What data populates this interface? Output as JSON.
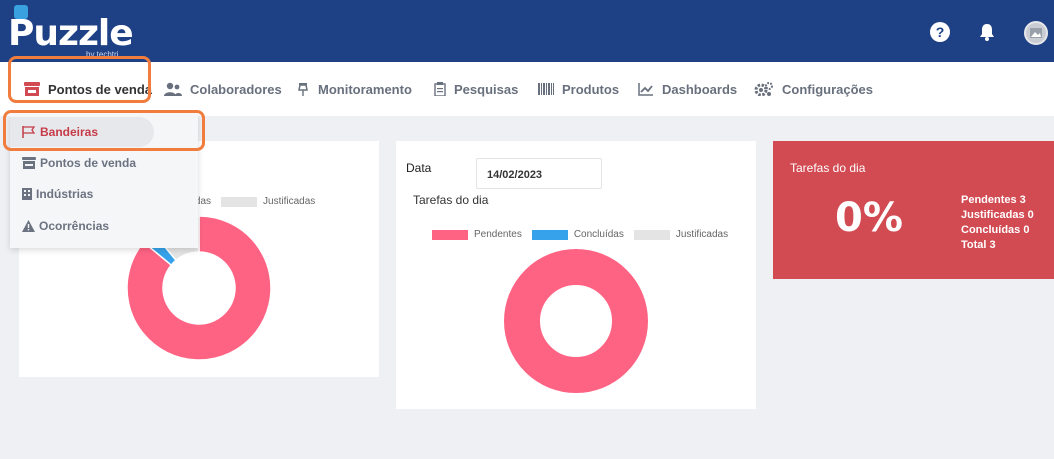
{
  "brand": {
    "name": "Puzzle",
    "sub": "by techtri"
  },
  "topbar": {
    "help_icon": "question-circle-icon",
    "bell_icon": "bell-icon",
    "avatar_icon": "image-avatar-icon",
    "help_glyph": "?"
  },
  "nav": [
    {
      "label": "Pontos de venda",
      "icon": "store-icon",
      "active": true
    },
    {
      "label": "Colaboradores",
      "icon": "users-icon",
      "active": false
    },
    {
      "label": "Monitoramento",
      "icon": "thumbtack-icon",
      "active": false
    },
    {
      "label": "Pesquisas",
      "icon": "clipboard-icon",
      "active": false
    },
    {
      "label": "Produtos",
      "icon": "barcode-icon",
      "active": false
    },
    {
      "label": "Dashboards",
      "icon": "chart-line-icon",
      "active": false
    },
    {
      "label": "Configurações",
      "icon": "cogs-icon",
      "active": false
    }
  ],
  "dropdown": [
    {
      "label": "Bandeiras",
      "icon": "flag-icon",
      "active": true
    },
    {
      "label": "Pontos de venda",
      "icon": "store-icon",
      "active": false
    },
    {
      "label": "Indústrias",
      "icon": "building-icon",
      "active": false
    },
    {
      "label": "Ocorrências",
      "icon": "warning-icon",
      "active": false
    }
  ],
  "filter": {
    "date_label": "Data",
    "date_value": "14/02/2023"
  },
  "colors": {
    "brand": "#1e4186",
    "pendentes": "#ff6384",
    "concluidas": "#36a2eb",
    "justificadas": "#e4e4e4",
    "highlight": "#f07c3e",
    "card_alert": "#d24a52",
    "active_red": "#c63b48"
  },
  "chart_data": [
    {
      "type": "pie",
      "variant": "doughnut",
      "categories": [
        "Pendentes",
        "Concluídas",
        "Justificadas"
      ],
      "values": [
        86,
        3,
        11
      ],
      "legend_visible": [
        "Concluídas",
        "Justificadas"
      ],
      "legend": "top"
    },
    {
      "type": "pie",
      "variant": "doughnut",
      "title": "Tarefas do dia",
      "categories": [
        "Pendentes",
        "Concluídas",
        "Justificadas"
      ],
      "values": [
        3,
        0,
        0
      ],
      "legend": "top"
    }
  ],
  "summary": {
    "title": "Tarefas do dia",
    "percent": "0%",
    "pendentes": "Pendentes 3",
    "justificadas": "Justificadas 0",
    "concluidas": "Concluídas 0",
    "total": "Total 3"
  }
}
